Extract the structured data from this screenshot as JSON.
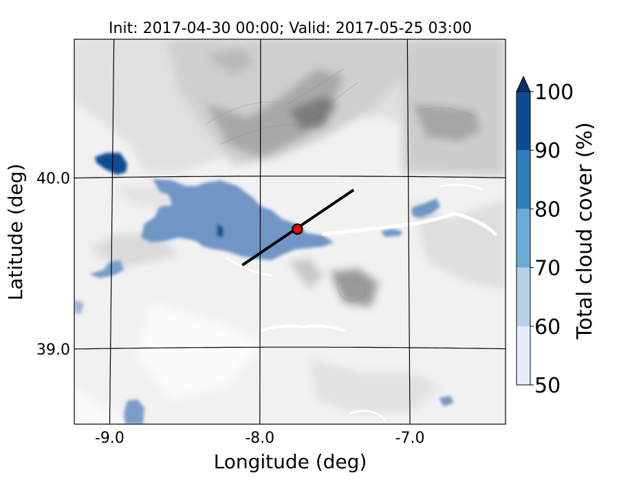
{
  "title": "Init: 2017-04-30 00:00; Valid: 2017-05-25 03:00",
  "map": {
    "xlabel": "Longitude (deg)",
    "ylabel": "Latitude (deg)",
    "lon_range": [
      -9.25,
      -6.35
    ],
    "lat_range": [
      38.55,
      40.8
    ],
    "lon_ticks": [
      {
        "value": -9.0,
        "label": "-9.0"
      },
      {
        "value": -8.0,
        "label": "-8.0"
      },
      {
        "value": -7.0,
        "label": "-7.0"
      }
    ],
    "lat_ticks": [
      {
        "value": 40.0,
        "label": "40.0"
      },
      {
        "value": 39.0,
        "label": "39.0"
      }
    ],
    "gridlines": true,
    "background_field": "terrain elevation (grey contours)",
    "cross_section": {
      "start": [
        -8.12,
        39.48
      ],
      "end": [
        -7.37,
        39.92
      ],
      "color": "#000000"
    },
    "marker": {
      "lon": -7.75,
      "lat": 39.69,
      "color": "#ff0000"
    }
  },
  "colorbar": {
    "label": "Total cloud cover (%)",
    "ticks": [
      "50",
      "60",
      "70",
      "80",
      "90",
      "100"
    ],
    "colors": [
      "#e5eef8",
      "#b6d1ea",
      "#6aabd8",
      "#2f7ebc",
      "#0b4c92",
      "#0a306b"
    ],
    "extend": "max"
  },
  "chart_data": {
    "type": "heatmap",
    "title": "Init: 2017-04-30 00:00; Valid: 2017-05-25 03:00",
    "xlabel": "Longitude (deg)",
    "ylabel": "Latitude (deg)",
    "levels": [
      50,
      60,
      70,
      80,
      90,
      100
    ],
    "cloud_regions": [
      {
        "lon": -8.1,
        "lat": 39.75,
        "value": 75
      },
      {
        "lon": -7.85,
        "lat": 39.65,
        "value": 75
      },
      {
        "lon": -7.55,
        "lat": 39.6,
        "value": 75
      },
      {
        "lon": -8.9,
        "lat": 40.07,
        "value": 95
      },
      {
        "lon": -6.9,
        "lat": 39.82,
        "value": 75
      },
      {
        "lon": -8.75,
        "lat": 38.65,
        "value": 75
      },
      {
        "lon": -6.72,
        "lat": 38.62,
        "value": 75
      }
    ]
  }
}
